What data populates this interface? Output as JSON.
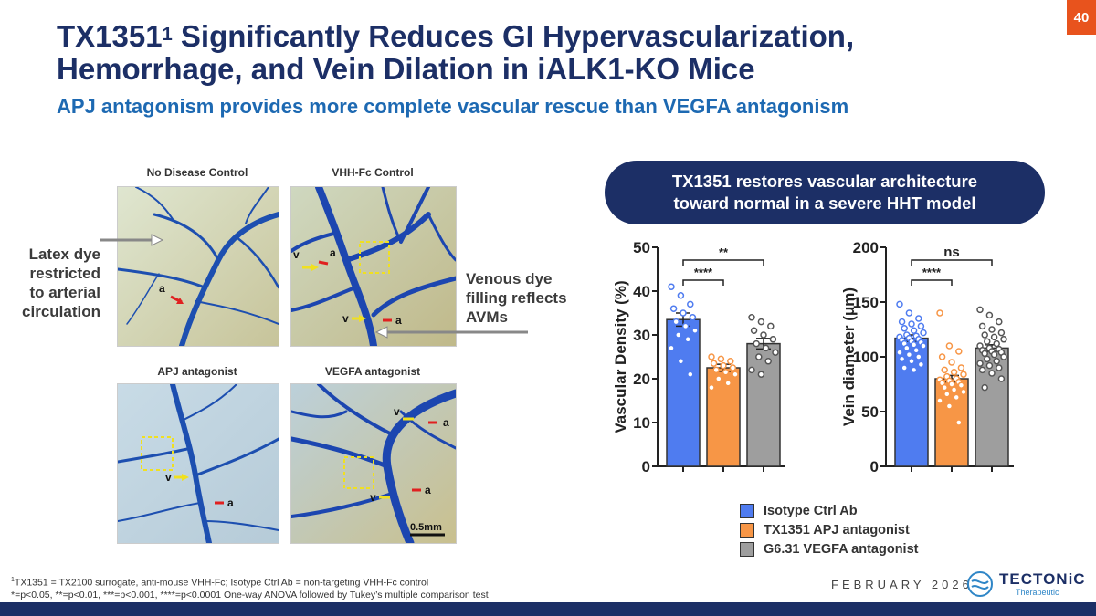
{
  "page_number": "40",
  "title": {
    "main": "TX1351",
    "sup": "1",
    "rest_line1": " Significantly Reduces GI Hypervascularization,",
    "line2": "Hemorrhage, and Vein Dilation in iALK1-KO Mice"
  },
  "subtitle": "APJ antagonism provides more complete vascular rescue than VEGFA antagonism",
  "panels": {
    "top_left": "No Disease Control",
    "top_right": "VHH-Fc Control",
    "bottom_left": "APJ antagonist",
    "bottom_right": "VEGFA antagonist",
    "scale_bar": "0.5mm",
    "markers": {
      "vein": "v",
      "artery": "a"
    }
  },
  "annotations": {
    "left_line1": "Latex dye",
    "left_line2": "restricted",
    "left_line3": "to arterial",
    "left_line4": "circulation",
    "right_line1": "Venous dye",
    "right_line2": "filling reflects",
    "right_line3": "AVMs"
  },
  "callout": {
    "line1": "TX1351 restores vascular architecture",
    "line2": "toward normal in a severe HHT model"
  },
  "colors": {
    "isotype": "#4f7cf0",
    "tx1351": "#f79646",
    "g631": "#9e9e9e",
    "navy": "#1c2f66",
    "accent": "#e8531d"
  },
  "legend": [
    {
      "label": "Isotype Ctrl Ab",
      "color": "#4f7cf0"
    },
    {
      "label": "TX1351 APJ antagonist",
      "color": "#f79646"
    },
    {
      "label": "G6.31 VEGFA antagonist",
      "color": "#9e9e9e"
    }
  ],
  "chart_data": [
    {
      "type": "bar",
      "ylabel": "Vascular Density (%)",
      "ylim": [
        0,
        50
      ],
      "yticks": [
        "0",
        "10",
        "20",
        "30",
        "40",
        "50"
      ],
      "categories": [
        "Isotype Ctrl Ab",
        "TX1351 APJ antagonist",
        "G6.31 VEGFA antagonist"
      ],
      "values": [
        33.5,
        22.5,
        28
      ],
      "errors": [
        1.5,
        0.8,
        1.2
      ],
      "points": [
        [
          41,
          39,
          37,
          36,
          35,
          34,
          33,
          32,
          31,
          30,
          29,
          27,
          24,
          21
        ],
        [
          25,
          24.5,
          24,
          23.5,
          23,
          22.5,
          22,
          21.5,
          21,
          20,
          19,
          18
        ],
        [
          34,
          33,
          32,
          31,
          30,
          29,
          28,
          27,
          26,
          25,
          24,
          22,
          21
        ]
      ],
      "comparisons": [
        {
          "from": 0,
          "to": 1,
          "label": "****"
        },
        {
          "from": 0,
          "to": 2,
          "label": "**"
        }
      ]
    },
    {
      "type": "bar",
      "ylabel": "Vein diameter (μm)",
      "ylim": [
        0,
        200
      ],
      "yticks": [
        "0",
        "50",
        "100",
        "150",
        "200"
      ],
      "categories": [
        "Isotype Ctrl Ab",
        "TX1351 APJ antagonist",
        "G6.31 VEGFA antagonist"
      ],
      "values": [
        117,
        80,
        108
      ],
      "errors": [
        3,
        3,
        3
      ],
      "points": [
        [
          148,
          140,
          135,
          132,
          130,
          128,
          126,
          124,
          122,
          120,
          119,
          118,
          117,
          116,
          115,
          114,
          113,
          112,
          111,
          110,
          108,
          106,
          104,
          102,
          100,
          98,
          96,
          93,
          90,
          88
        ],
        [
          140,
          110,
          105,
          100,
          95,
          90,
          88,
          86,
          84,
          82,
          80,
          79,
          78,
          77,
          76,
          75,
          74,
          72,
          70,
          68,
          66,
          63,
          60,
          55,
          40
        ],
        [
          143,
          138,
          132,
          128,
          125,
          122,
          120,
          118,
          116,
          114,
          112,
          110,
          108,
          107,
          106,
          105,
          104,
          103,
          102,
          100,
          98,
          96,
          94,
          92,
          90,
          88,
          85,
          80,
          72
        ]
      ],
      "comparisons": [
        {
          "from": 0,
          "to": 1,
          "label": "****"
        },
        {
          "from": 0,
          "to": 2,
          "label": "ns"
        }
      ]
    }
  ],
  "footnote": {
    "line1_sup": "1",
    "line1": "TX1351 = TX2100 surrogate, anti-mouse VHH-Fc; Isotype Ctrl Ab = non-targeting VHH-Fc control",
    "line2": "*=p<0.05, **=p<0.01, ***=p<0.001, ****=p<0.0001 One-way ANOVA followed by Tukey’s multiple comparison test"
  },
  "date": "FEBRUARY 2026",
  "logo": {
    "name": "TECTONiC",
    "sub": "Therapeutic"
  }
}
